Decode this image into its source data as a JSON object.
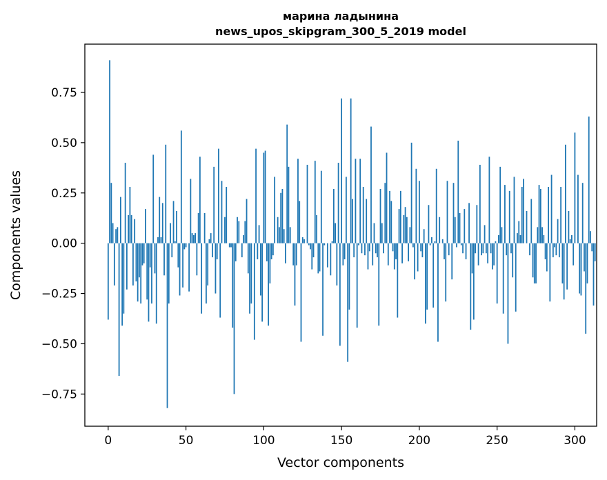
{
  "chart_data": {
    "type": "bar",
    "title": "марина ладынина",
    "subtitle": "news_upos_skipgram_300_5_2019 model",
    "xlabel": "Vector components",
    "ylabel": "Components values",
    "xlim": [
      -15,
      314
    ],
    "ylim": [
      -0.91,
      0.99
    ],
    "xticks": [
      0,
      50,
      100,
      150,
      200,
      250,
      300
    ],
    "xtick_labels": [
      "0",
      "50",
      "100",
      "150",
      "200",
      "250",
      "300"
    ],
    "yticks": [
      -0.75,
      -0.5,
      -0.25,
      0.0,
      0.25,
      0.5,
      0.75
    ],
    "ytick_labels": [
      "−0.75",
      "−0.50",
      "−0.25",
      "0.00",
      "0.25",
      "0.50",
      "0.75"
    ],
    "grid": false,
    "bar_color": "#1f77b4",
    "series": [
      {
        "x_start": 0,
        "values": [
          -0.38,
          0.91,
          0.3,
          0.1,
          -0.21,
          0.07,
          0.08,
          -0.66,
          0.23,
          -0.41,
          -0.35,
          0.4,
          -0.23,
          0.14,
          0.28,
          0.14,
          -0.21,
          0.12,
          -0.19,
          -0.29,
          -0.17,
          -0.3,
          -0.11,
          -0.1,
          0.17,
          -0.28,
          -0.39,
          -0.12,
          -0.3,
          0.44,
          -0.15,
          -0.4,
          0.03,
          0.23,
          0.03,
          0.2,
          -0.16,
          0.49,
          -0.82,
          -0.3,
          0.1,
          -0.07,
          0.21,
          0.01,
          0.16,
          -0.12,
          -0.26,
          0.56,
          -0.22,
          -0.03,
          -0.02,
          0.0,
          -0.24,
          0.32,
          0.05,
          0.04,
          0.05,
          -0.16,
          0.15,
          0.43,
          -0.35,
          0.0,
          0.15,
          -0.3,
          -0.21,
          0.02,
          0.05,
          -0.07,
          0.38,
          -0.25,
          -0.08,
          0.47,
          -0.37,
          0.31,
          0.0,
          0.13,
          0.28,
          0.0,
          -0.02,
          -0.02,
          -0.42,
          -0.75,
          -0.09,
          0.13,
          0.11,
          0.0,
          -0.07,
          0.04,
          0.11,
          0.22,
          -0.15,
          -0.35,
          -0.3,
          0.0,
          -0.48,
          0.47,
          -0.08,
          0.09,
          -0.26,
          -0.39,
          0.45,
          0.46,
          -0.09,
          -0.41,
          -0.2,
          -0.08,
          -0.06,
          0.33,
          0.0,
          0.13,
          0.08,
          0.25,
          0.27,
          0.07,
          -0.1,
          0.59,
          0.38,
          0.08,
          0.0,
          -0.11,
          -0.31,
          -0.11,
          0.42,
          0.21,
          -0.49,
          0.03,
          0.02,
          0.0,
          0.39,
          -0.01,
          -0.03,
          -0.13,
          -0.07,
          0.41,
          0.14,
          -0.15,
          -0.14,
          0.36,
          -0.46,
          -0.01,
          0.0,
          -0.12,
          0.0,
          -0.16,
          0.01,
          0.27,
          0.1,
          -0.21,
          0.4,
          -0.51,
          0.72,
          -0.11,
          -0.08,
          0.33,
          -0.59,
          -0.33,
          0.72,
          0.22,
          -0.07,
          0.42,
          -0.42,
          -0.01,
          0.42,
          -0.05,
          0.28,
          -0.06,
          0.22,
          -0.13,
          -0.04,
          0.58,
          -0.11,
          0.1,
          -0.05,
          -0.07,
          -0.41,
          0.27,
          0.1,
          -0.05,
          0.3,
          0.45,
          -0.11,
          0.26,
          0.21,
          -0.04,
          -0.13,
          -0.08,
          -0.37,
          0.17,
          0.26,
          -0.1,
          0.14,
          0.18,
          0.13,
          -0.09,
          0.08,
          0.5,
          -0.02,
          -0.18,
          0.37,
          -0.14,
          0.31,
          -0.04,
          -0.07,
          0.07,
          -0.4,
          -0.33,
          0.19,
          -0.01,
          0.03,
          -0.32,
          0.01,
          0.37,
          -0.49,
          0.13,
          0.0,
          0.02,
          -0.08,
          -0.29,
          0.31,
          -0.06,
          0.0,
          -0.18,
          0.3,
          0.13,
          -0.02,
          0.51,
          0.15,
          -0.01,
          -0.05,
          0.17,
          -0.08,
          0.0,
          0.2,
          -0.43,
          -0.15,
          -0.38,
          -0.05,
          0.19,
          -0.11,
          0.39,
          -0.06,
          -0.05,
          0.09,
          -0.05,
          -0.1,
          0.43,
          -0.05,
          -0.13,
          -0.11,
          0.01,
          -0.3,
          0.04,
          0.38,
          0.08,
          -0.35,
          0.29,
          -0.06,
          -0.5,
          0.26,
          -0.05,
          -0.17,
          0.33,
          -0.34,
          0.05,
          0.11,
          0.04,
          0.28,
          0.32,
          0.0,
          0.16,
          0.0,
          -0.06,
          0.22,
          -0.17,
          -0.2,
          -0.2,
          0.08,
          0.29,
          0.27,
          0.08,
          0.04,
          -0.08,
          -0.14,
          0.28,
          -0.29,
          0.34,
          -0.07,
          -0.02,
          -0.06,
          0.12,
          -0.07,
          0.28,
          -0.2,
          -0.28,
          0.49,
          -0.23,
          0.16,
          0.02,
          0.04,
          -0.11,
          0.55,
          0.0,
          0.34,
          -0.25,
          -0.26,
          0.3,
          -0.14,
          -0.45,
          -0.2,
          0.63,
          0.06,
          -0.04,
          -0.31,
          -0.09
        ]
      }
    ]
  }
}
